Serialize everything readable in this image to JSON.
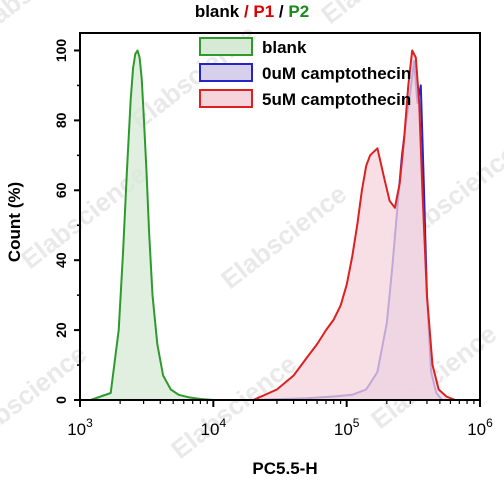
{
  "chart_data": {
    "type": "area",
    "title_parts": [
      {
        "text": "blank",
        "color": "#000000"
      },
      {
        "text": " / ",
        "color": "#cc0000"
      },
      {
        "text": "P1",
        "color": "#dd0000"
      },
      {
        "text": " / ",
        "color": "#000000"
      },
      {
        "text": "P2",
        "color": "#1a8a1a"
      }
    ],
    "xlabel": "PC5.5-H",
    "ylabel": "Count (%)",
    "xscale": "log",
    "xlim": [
      1000,
      1000000
    ],
    "ylim": [
      0,
      105
    ],
    "xticks": [
      {
        "value": 1000,
        "base": "10",
        "exp": "3"
      },
      {
        "value": 10000,
        "base": "10",
        "exp": "4"
      },
      {
        "value": 100000,
        "base": "10",
        "exp": "5"
      },
      {
        "value": 1000000,
        "base": "10",
        "exp": "6"
      }
    ],
    "yticks": [
      0,
      20,
      40,
      60,
      80,
      100
    ],
    "legend_position": "top-right",
    "watermark": "Elabscience",
    "series": [
      {
        "name": "blank",
        "stroke": "#2e9a2e",
        "fill": "#d6ead6",
        "x": [
          1200,
          1700,
          1950,
          2100,
          2250,
          2400,
          2500,
          2600,
          2700,
          2800,
          2900,
          3000,
          3150,
          3300,
          3500,
          3800,
          4200,
          4800,
          5500,
          6500,
          8000,
          10000
        ],
        "y": [
          0,
          2,
          20,
          42,
          66,
          86,
          95,
          99,
          100,
          98,
          92,
          82,
          66,
          48,
          30,
          16,
          7,
          3,
          1.5,
          0.8,
          0.3,
          0
        ]
      },
      {
        "name": "0uM camptothecin",
        "stroke": "#2424c8",
        "fill": "#d6d0ec",
        "x": [
          20000,
          50000,
          80000,
          110000,
          140000,
          170000,
          200000,
          220000,
          240000,
          260000,
          280000,
          300000,
          320000,
          340000,
          360000,
          380000,
          400000,
          430000,
          470000,
          520000
        ],
        "y": [
          0,
          0.5,
          1,
          1.5,
          3,
          8,
          22,
          38,
          55,
          70,
          80,
          88,
          97,
          85,
          90,
          60,
          30,
          8,
          2,
          0
        ]
      },
      {
        "name": "5uM camptothecin",
        "stroke": "#dd2020",
        "fill": "#f6d4dc",
        "x": [
          20000,
          30000,
          40000,
          50000,
          60000,
          70000,
          80000,
          90000,
          100000,
          110000,
          120000,
          130000,
          140000,
          150000,
          170000,
          190000,
          210000,
          230000,
          250000,
          270000,
          290000,
          310000,
          330000,
          350000,
          370000,
          400000,
          440000,
          490000,
          560000,
          650000
        ],
        "y": [
          0,
          3,
          7,
          12,
          16,
          20,
          23,
          27,
          33,
          41,
          50,
          60,
          67,
          70,
          72,
          64,
          57,
          55,
          62,
          75,
          90,
          100,
          98,
          85,
          60,
          30,
          10,
          3,
          1,
          0
        ]
      }
    ]
  }
}
